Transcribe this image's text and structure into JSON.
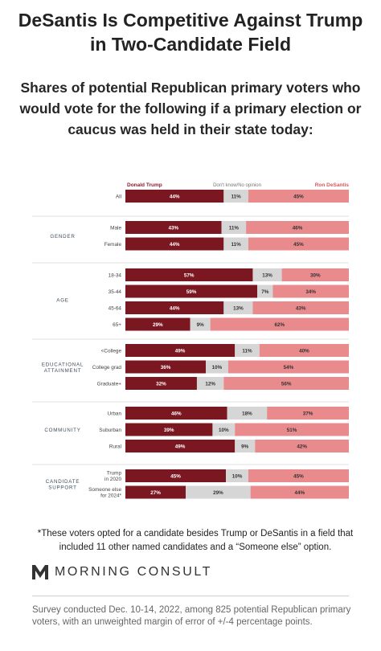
{
  "title": "DeSantis Is Competitive Against Trump in Two-Candidate Field",
  "subtitle": "Shares of potential Republican primary voters who would vote for the following if a primary election or caucus was held in their state today:",
  "footnote": "*These voters opted for a candidate besides Trump or DeSantis in a field that included 11 other named candidates and a “Someone else” option.",
  "brand": {
    "name": "MORNING CONSULT",
    "mark": "M-logo-mark"
  },
  "source": "Survey conducted Dec. 10-14, 2022, among 825 potential Republican primary voters, with an unweighted margin of error of +/-4 percentage points.",
  "colors": {
    "trump": "#7b1721",
    "unsure": "#d6d6d6",
    "desantis": "#e98a8d",
    "trump_label": "#8a1e28",
    "desantis_label": "#d9575d"
  },
  "chart_data": {
    "type": "bar",
    "orientation": "horizontal",
    "stacked": true,
    "series": [
      {
        "name": "Donald Trump"
      },
      {
        "name": "Don't know/No opinion"
      },
      {
        "name": "Ron DeSantis"
      }
    ],
    "groups": [
      {
        "name": "",
        "rows": [
          {
            "label": "All",
            "values": [
              44,
              11,
              45
            ]
          }
        ]
      },
      {
        "name": "GENDER",
        "rows": [
          {
            "label": "Male",
            "values": [
              43,
              11,
              46
            ]
          },
          {
            "label": "Female",
            "values": [
              44,
              11,
              45
            ]
          }
        ]
      },
      {
        "name": "AGE",
        "rows": [
          {
            "label": "18-34",
            "values": [
              57,
              13,
              30
            ]
          },
          {
            "label": "35-44",
            "values": [
              59,
              7,
              34
            ]
          },
          {
            "label": "45-64",
            "values": [
              44,
              13,
              43
            ]
          },
          {
            "label": "65+",
            "values": [
              29,
              9,
              62
            ]
          }
        ]
      },
      {
        "name": "EDUCATIONAL ATTAINMENT",
        "rows": [
          {
            "label": "<College",
            "values": [
              49,
              11,
              40
            ]
          },
          {
            "label": "College grad",
            "values": [
              36,
              10,
              54
            ]
          },
          {
            "label": "Graduate+",
            "values": [
              32,
              12,
              56
            ]
          }
        ]
      },
      {
        "name": "COMMUNITY",
        "rows": [
          {
            "label": "Urban",
            "values": [
              46,
              18,
              37
            ]
          },
          {
            "label": "Suburban",
            "values": [
              39,
              10,
              51
            ]
          },
          {
            "label": "Rural",
            "values": [
              49,
              9,
              42
            ]
          }
        ]
      },
      {
        "name": "CANDIDATE SUPPORT",
        "rows": [
          {
            "label": "Trump in 2020",
            "values": [
              45,
              10,
              45
            ]
          },
          {
            "label": "Someone else for 2024*",
            "values": [
              27,
              29,
              44
            ]
          }
        ]
      }
    ]
  }
}
